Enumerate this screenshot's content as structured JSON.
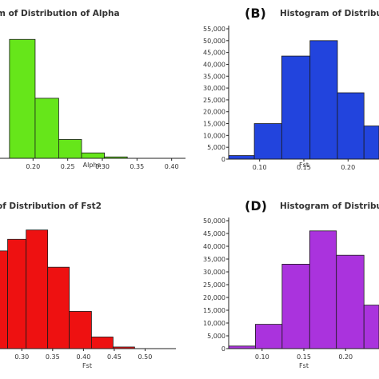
{
  "panels": [
    {
      "label": "",
      "title": "m of Distribution of Alpha"
    },
    {
      "label": "(B)",
      "title": "Histogram of Distributi"
    },
    {
      "label": "",
      "title": "of Distribution of Fst2"
    },
    {
      "label": "(D)",
      "title": "Histogram of Distributi"
    }
  ],
  "chart_data": [
    {
      "type": "bar",
      "title": "m of Distribution of Alpha",
      "xlabel": "Alpha",
      "ylabel": "",
      "color": "#66e61a",
      "x_ticks": [
        "0.20",
        "0.25",
        "0.30",
        "0.35",
        "0.40"
      ],
      "y_ticks": [],
      "bin_edges": [
        0.166,
        0.203,
        0.237,
        0.27,
        0.303,
        0.336
      ],
      "values": [
        50500,
        25500,
        8000,
        2300,
        600
      ],
      "xlim": [
        0.15,
        0.42
      ],
      "ylim": [
        0,
        55000
      ],
      "grid": false
    },
    {
      "type": "bar",
      "title": "Histogram of Distributi",
      "xlabel": "Fst",
      "ylabel": "",
      "color": "#2244dd",
      "x_ticks": [
        "0.10",
        "0.15",
        "0.20"
      ],
      "y_ticks": [
        "0",
        "5,000",
        "10,000",
        "15,000",
        "20,000",
        "25,000",
        "30,000",
        "35,000",
        "40,000",
        "45,000",
        "50,000",
        "55,000"
      ],
      "bin_edges": [
        0.065,
        0.094,
        0.125,
        0.157,
        0.188,
        0.218,
        0.235
      ],
      "values": [
        1500,
        15000,
        43500,
        50000,
        28000,
        14000
      ],
      "xlim": [
        0.065,
        0.235
      ],
      "ylim": [
        0,
        55000
      ],
      "grid": false
    },
    {
      "type": "bar",
      "title": "of Distribution of Fst2",
      "xlabel": "Fst",
      "ylabel": "",
      "color": "#ee1111",
      "x_ticks": [
        "0.30",
        "0.35",
        "0.40",
        "0.45",
        "0.50"
      ],
      "y_ticks": [],
      "bin_edges": [
        0.262,
        0.277,
        0.307,
        0.342,
        0.377,
        0.413,
        0.448,
        0.483
      ],
      "values": [
        42000,
        47000,
        51000,
        35000,
        16000,
        5000,
        700
      ],
      "xlim": [
        0.262,
        0.55
      ],
      "ylim": [
        0,
        55000
      ],
      "grid": false
    },
    {
      "type": "bar",
      "title": "Histogram of Distributi",
      "xlabel": "Fst",
      "ylabel": "",
      "color": "#aa33dd",
      "x_ticks": [
        "0.10",
        "0.15",
        "0.20"
      ],
      "y_ticks": [
        "0",
        "5,000",
        "10,000",
        "15,000",
        "20,000",
        "25,000",
        "30,000",
        "35,000",
        "40,000",
        "45,000",
        "50,000"
      ],
      "bin_edges": [
        0.06,
        0.092,
        0.124,
        0.157,
        0.189,
        0.222,
        0.24
      ],
      "values": [
        1000,
        9500,
        33000,
        46000,
        36500,
        17000
      ],
      "xlim": [
        0.06,
        0.24
      ],
      "ylim": [
        0,
        50000
      ],
      "grid": false
    }
  ]
}
